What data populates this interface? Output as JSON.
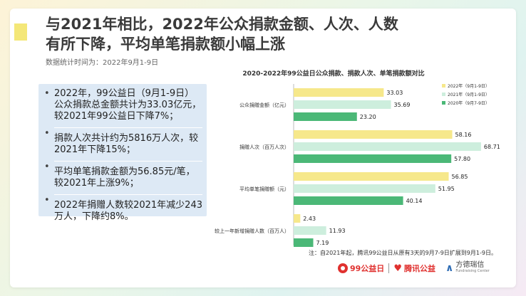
{
  "title_line1": "与2021年相比，2022年公众捐款金额、人次、人数",
  "title_line2": "有所下降，平均单笔捐款额小幅上涨",
  "subtitle": "数据统计时间为：2022年9月1-9日",
  "bullets": [
    "2022年，99公益日（9月1-9日）公众捐款总金额共计为33.03亿元，较2021年99公益日下降7%；",
    "捐款人次共计约为5816万人次，较2021年下降15%；",
    "平均单笔捐款金额为56.85元/笔，较2021年上涨9%；",
    "2022年捐赠人数较2021年减少243万人，下降约8%。"
  ],
  "note": "注：自2021年起，腾讯99公益日从原有3天的9月7-9日扩展到9月1-9日。",
  "footer": {
    "logo1": "99公益日",
    "logo2": "腾讯公益",
    "logo3_cn": "方德瑞信",
    "logo3_en": "Fundraising Center"
  },
  "colors": {
    "series_2022": "#f6e88b",
    "series_2021": "#cdeedd",
    "series_2020": "#4bb877",
    "accent": "#f4e778"
  },
  "chart_data": {
    "type": "bar",
    "orientation": "horizontal",
    "title": "2020-2022年99公益日公众捐款、捐款人次、单笔捐款额对比",
    "categories": [
      "公众捐赠金额（亿元）",
      "捐赠人次（百万人次）",
      "平均单笔捐赠额（元）",
      "较上一年新增捐赠人数（百万人）"
    ],
    "series": [
      {
        "name": "2022年（9月1-9日）",
        "values": [
          33.03,
          58.16,
          56.85,
          2.43
        ]
      },
      {
        "name": "2021年（9月1-9日）",
        "values": [
          35.69,
          68.71,
          51.95,
          11.93
        ]
      },
      {
        "name": "2020年（9月7-9日）",
        "values": [
          23.2,
          57.8,
          40.14,
          7.19
        ]
      }
    ],
    "value_labels": [
      [
        "33.03",
        "58.16",
        "56.85",
        "2.43"
      ],
      [
        "35.69",
        "68.71",
        "51.95",
        "11.93"
      ],
      [
        "23.20",
        "57.80",
        "40.14",
        "7.19"
      ]
    ],
    "xlim": [
      0,
      70
    ],
    "legend_position": "top-right"
  }
}
